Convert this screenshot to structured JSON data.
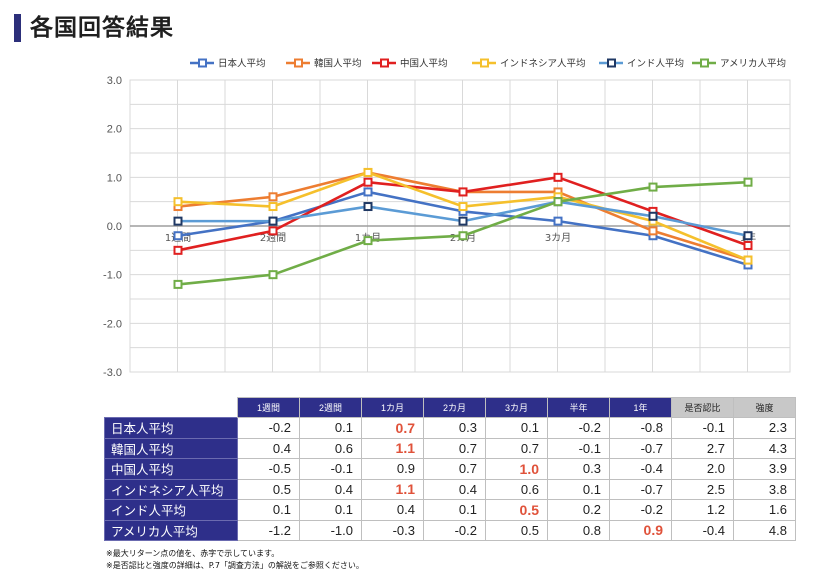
{
  "page": {
    "title": "各国回答結果"
  },
  "chart_data": {
    "type": "line",
    "categories": [
      "1週間",
      "2週間",
      "1カ月",
      "2カ月",
      "3カ月",
      "半年",
      "1年"
    ],
    "ylim": [
      -3.0,
      3.0
    ],
    "y_ticks": [
      "3.0",
      "2.0",
      "1.0",
      "0.0",
      "-1.0",
      "-2.0",
      "-3.0"
    ],
    "x_tick_labels": [
      "1週間",
      "2週間",
      "1カ月",
      "2カ月",
      "3カ月",
      "",
      "1年"
    ],
    "grid": true,
    "legend_position": "top",
    "series": [
      {
        "name": "日本人平均",
        "color": "#4472c4",
        "values": [
          -0.2,
          0.1,
          0.7,
          0.3,
          0.1,
          -0.2,
          -0.8
        ]
      },
      {
        "name": "韓国人平均",
        "color": "#ed7d31",
        "values": [
          0.4,
          0.6,
          1.1,
          0.7,
          0.7,
          -0.1,
          -0.7
        ]
      },
      {
        "name": "中国人平均",
        "color": "#e02020",
        "values": [
          -0.5,
          -0.1,
          0.9,
          0.7,
          1.0,
          0.3,
          -0.4
        ]
      },
      {
        "name": "インドネシア人平均",
        "color": "#f5c02c",
        "values": [
          0.5,
          0.4,
          1.1,
          0.4,
          0.6,
          0.1,
          -0.7
        ]
      },
      {
        "name": "インド人平均",
        "color": "#5b9bd5",
        "values": [
          0.1,
          0.1,
          0.4,
          0.1,
          0.5,
          0.2,
          -0.2
        ]
      },
      {
        "name": "アメリカ人平均",
        "color": "#70ad47",
        "values": [
          -1.2,
          -1.0,
          -0.3,
          -0.2,
          0.5,
          0.8,
          0.9
        ]
      }
    ],
    "marker_border_series": [
      "インド人平均"
    ],
    "marker_border_color": "#1f3864"
  },
  "table": {
    "headers": [
      "1週間",
      "2週間",
      "1カ月",
      "2カ月",
      "3カ月",
      "半年",
      "1年",
      "是否認比",
      "強度"
    ],
    "rows": [
      {
        "label": "日本人平均",
        "values": [
          "-0.2",
          "0.1",
          "0.7",
          "0.3",
          "0.1",
          "-0.2",
          "-0.8",
          "-0.1",
          "2.3"
        ],
        "highlight": [
          2
        ]
      },
      {
        "label": "韓国人平均",
        "values": [
          "0.4",
          "0.6",
          "1.1",
          "0.7",
          "0.7",
          "-0.1",
          "-0.7",
          "2.7",
          "4.3"
        ],
        "highlight": [
          2
        ]
      },
      {
        "label": "中国人平均",
        "values": [
          "-0.5",
          "-0.1",
          "0.9",
          "0.7",
          "1.0",
          "0.3",
          "-0.4",
          "2.0",
          "3.9"
        ],
        "highlight": [
          4
        ]
      },
      {
        "label": "インドネシア人平均",
        "values": [
          "0.5",
          "0.4",
          "1.1",
          "0.4",
          "0.6",
          "0.1",
          "-0.7",
          "2.5",
          "3.8"
        ],
        "highlight": [
          2
        ]
      },
      {
        "label": "インド人平均",
        "values": [
          "0.1",
          "0.1",
          "0.4",
          "0.1",
          "0.5",
          "0.2",
          "-0.2",
          "1.2",
          "1.6"
        ],
        "highlight": [
          4
        ]
      },
      {
        "label": "アメリカ人平均",
        "values": [
          "-1.2",
          "-1.0",
          "-0.3",
          "-0.2",
          "0.5",
          "0.8",
          "0.9",
          "-0.4",
          "4.8"
        ],
        "highlight": [
          6
        ]
      }
    ],
    "highlight_color": "#e0523a"
  },
  "notes": {
    "note1": "※最大リターン点の値を、赤字で示しています。",
    "note2": "※是否認比と強度の詳細は、P.7「調査方法」の解説をご参照ください。"
  }
}
